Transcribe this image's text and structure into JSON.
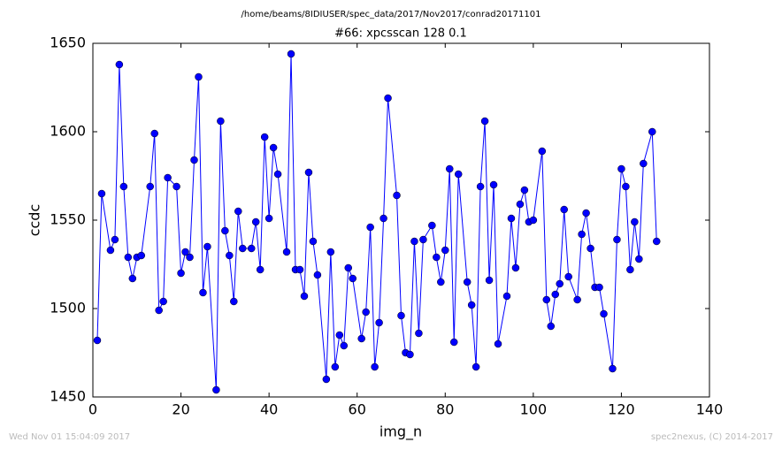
{
  "header": {
    "path": "/home/beams/8IDIUSER/spec_data/2017/Nov2017/conrad20171101"
  },
  "chart_data": {
    "type": "line",
    "title": "#66: xpcsscan 128 0.1",
    "xlabel": "img_n",
    "ylabel": "ccdc",
    "x": [
      1,
      2,
      4,
      5,
      6,
      7,
      8,
      9,
      10,
      11,
      13,
      14,
      15,
      16,
      17,
      19,
      20,
      21,
      22,
      23,
      24,
      25,
      26,
      28,
      29,
      30,
      31,
      32,
      33,
      34,
      36,
      37,
      38,
      39,
      40,
      41,
      42,
      44,
      45,
      46,
      47,
      48,
      49,
      50,
      51,
      53,
      54,
      55,
      56,
      57,
      58,
      59,
      61,
      62,
      63,
      64,
      65,
      66,
      67,
      69,
      70,
      71,
      72,
      73,
      74,
      75,
      77,
      78,
      79,
      80,
      81,
      82,
      83,
      85,
      86,
      87,
      88,
      89,
      90,
      91,
      92,
      94,
      95,
      96,
      97,
      98,
      99,
      100,
      102,
      103,
      104,
      105,
      106,
      107,
      108,
      110,
      111,
      112,
      113,
      114,
      115,
      116,
      118,
      119,
      120,
      121,
      122,
      123,
      124,
      125,
      127,
      128
    ],
    "series": [
      {
        "name": "ccdc",
        "color": "#0000ff",
        "values": [
          1482,
          1565,
          1533,
          1539,
          1638,
          1569,
          1529,
          1517,
          1529,
          1530,
          1569,
          1599,
          1499,
          1504,
          1574,
          1569,
          1520,
          1532,
          1529,
          1584,
          1631,
          1509,
          1535,
          1454,
          1606,
          1544,
          1530,
          1504,
          1555,
          1534,
          1534,
          1549,
          1522,
          1597,
          1551,
          1591,
          1576,
          1532,
          1644,
          1522,
          1522,
          1507,
          1577,
          1538,
          1519,
          1460,
          1532,
          1467,
          1485,
          1479,
          1523,
          1517,
          1483,
          1498,
          1546,
          1467,
          1492,
          1551,
          1619,
          1564,
          1496,
          1475,
          1474,
          1538,
          1486,
          1539,
          1547,
          1529,
          1515,
          1533,
          1579,
          1481,
          1576,
          1515,
          1502,
          1467,
          1569,
          1606,
          1516,
          1570,
          1480,
          1507,
          1551,
          1523,
          1559,
          1567,
          1549,
          1550,
          1589,
          1505,
          1490,
          1508,
          1514,
          1556,
          1518,
          1505,
          1542,
          1554,
          1534,
          1512,
          1512,
          1497,
          1466,
          1539,
          1579,
          1569,
          1522,
          1549,
          1528,
          1582,
          1600,
          1538
        ]
      }
    ],
    "xlim": [
      0,
      140
    ],
    "xticks": [
      0,
      20,
      40,
      60,
      80,
      100,
      120,
      140
    ],
    "ylim": [
      1450,
      1650
    ],
    "yticks": [
      1450,
      1500,
      1550,
      1600,
      1650
    ]
  },
  "footer": {
    "left": "Wed Nov 01 15:04:09 2017",
    "right": "spec2nexus, (C) 2014-2017"
  }
}
